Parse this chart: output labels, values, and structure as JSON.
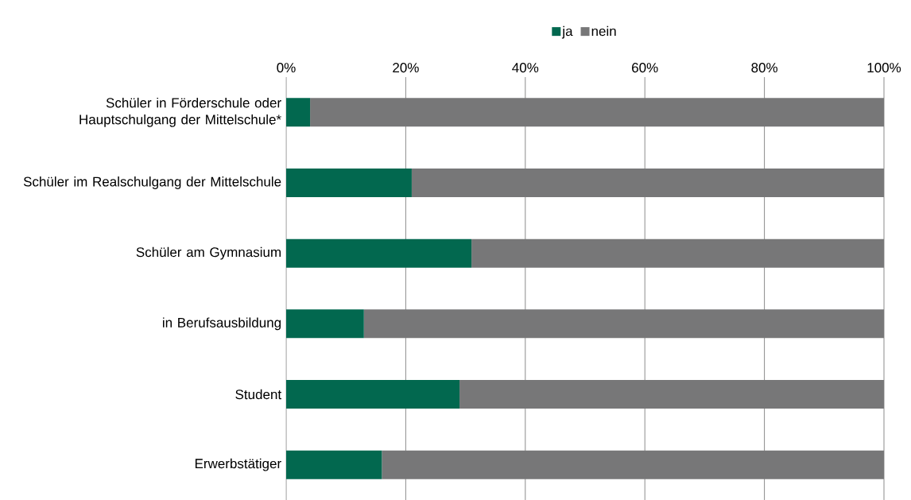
{
  "chart_data": {
    "type": "bar",
    "orientation": "horizontal",
    "stacked": true,
    "categories": [
      "Schüler in Förderschule oder Hauptschulgang der Mittelschule*",
      "Schüler im Realschulgang der Mittelschule",
      "Schüler am Gymnasium",
      "in Berufsausbildung",
      "Student",
      "Erwerbstätiger"
    ],
    "series": [
      {
        "name": "ja",
        "color": "#02684f",
        "values": [
          4,
          21,
          31,
          13,
          29,
          16
        ]
      },
      {
        "name": "nein",
        "color": "#777778",
        "values": [
          96,
          79,
          69,
          87,
          71,
          84
        ]
      }
    ],
    "xlim": [
      0,
      100
    ],
    "xticks": [
      {
        "value": 0,
        "label": "0%"
      },
      {
        "value": 20,
        "label": "20%"
      },
      {
        "value": 40,
        "label": "40%"
      },
      {
        "value": 60,
        "label": "60%"
      },
      {
        "value": 80,
        "label": "80%"
      },
      {
        "value": 100,
        "label": "100%"
      }
    ],
    "grid": "x",
    "legend": "top"
  }
}
